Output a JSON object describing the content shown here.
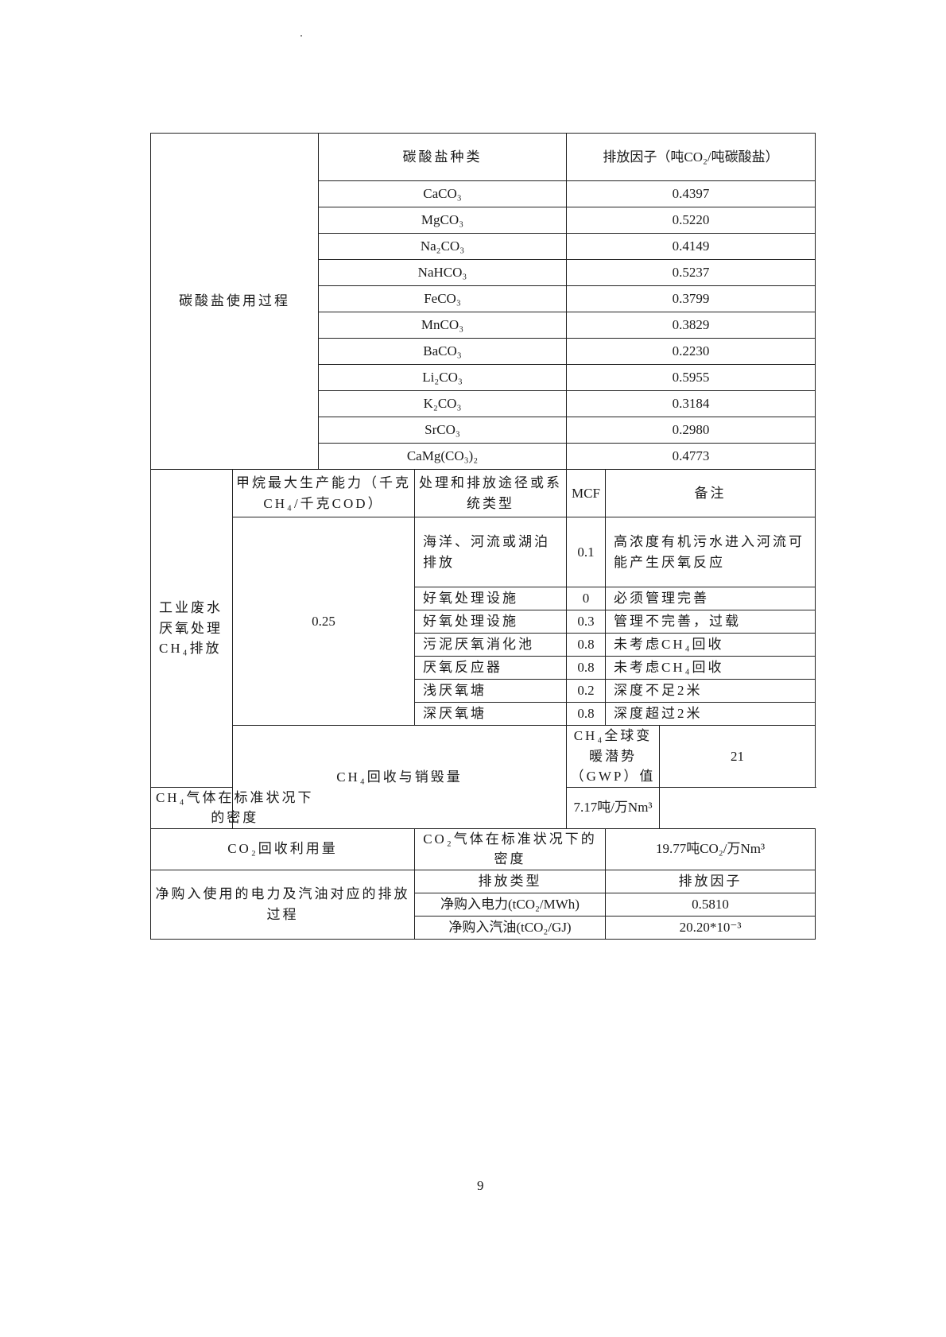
{
  "carbonate": {
    "section_label": "碳酸盐使用过程",
    "col_type": "碳酸盐种类",
    "col_factor": "排放因子（吨CO₂/吨碳酸盐）",
    "rows": [
      {
        "type": "CaCO₃",
        "factor": "0.4397"
      },
      {
        "type": "MgCO₃",
        "factor": "0.5220"
      },
      {
        "type": "Na₂CO₃",
        "factor": "0.4149"
      },
      {
        "type": "NaHCO₃",
        "factor": "0.5237"
      },
      {
        "type": "FeCO₃",
        "factor": "0.3799"
      },
      {
        "type": "MnCO₃",
        "factor": "0.3829"
      },
      {
        "type": "BaCO₃",
        "factor": "0.2230"
      },
      {
        "type": "Li₂CO₃",
        "factor": "0.5955"
      },
      {
        "type": "K₂CO₃",
        "factor": "0.3184"
      },
      {
        "type": "SrCO₃",
        "factor": "0.2980"
      },
      {
        "type": "CaMg(CO₃)₂",
        "factor": "0.4773"
      }
    ]
  },
  "wastewater": {
    "section_label": "工业废水厌氧处理CH₄排放",
    "col_capacity": "甲烷最大生产能力（千克CH₄/千克COD）",
    "col_path": "处理和排放途径或系统类型",
    "col_mcf": "MCF",
    "col_note": "备注",
    "capacity": "0.25",
    "rows": [
      {
        "path": "海洋、河流或湖泊排放",
        "mcf": "0.1",
        "note": "高浓度有机污水进入河流可能产生厌氧反应"
      },
      {
        "path": "好氧处理设施",
        "mcf": "0",
        "note": "必须管理完善"
      },
      {
        "path": "好氧处理设施",
        "mcf": "0.3",
        "note": "管理不完善，过载"
      },
      {
        "path": "污泥厌氧消化池",
        "mcf": "0.8",
        "note": "未考虑CH₄回收"
      },
      {
        "path": "厌氧反应器",
        "mcf": "0.8",
        "note": "未考虑CH₄回收"
      },
      {
        "path": "浅厌氧塘",
        "mcf": "0.2",
        "note": "深度不足2米"
      },
      {
        "path": "深厌氧塘",
        "mcf": "0.8",
        "note": "深度超过2米"
      }
    ]
  },
  "ch4_recovery": {
    "label": "CH₄回收与销毁量",
    "rows": [
      {
        "item": "CH₄全球变暖潜势（GWP）值",
        "value": "21"
      },
      {
        "item": "CH₄气体在标准状况下的密度",
        "value": "7.17吨/万Nm³"
      }
    ]
  },
  "co2_recovery": {
    "label": "CO₂回收利用量",
    "item": "CO₂气体在标准状况下的密度",
    "value": "19.77吨CO₂/万Nm³"
  },
  "purchased": {
    "label": "净购入使用的电力及汽油对应的排放过程",
    "col_type": "排放类型",
    "col_factor": "排放因子",
    "rows": [
      {
        "item": "净购入电力(tCO₂/MWh)",
        "value": "0.5810"
      },
      {
        "item": "净购入汽油(tCO₂/GJ)",
        "value": "20.20*10⁻³"
      }
    ]
  },
  "page_number": "9"
}
